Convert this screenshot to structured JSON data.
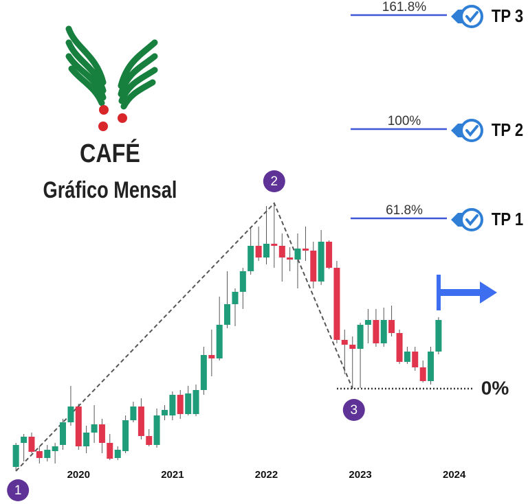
{
  "chart_data": {
    "type": "candlestick",
    "title": "CAFÉ",
    "subtitle": "Gráfico Mensal",
    "x": [
      2019.333,
      2019.417,
      2019.5,
      2019.583,
      2019.667,
      2019.75,
      2019.833,
      2019.917,
      2020.0,
      2020.083,
      2020.167,
      2020.25,
      2020.333,
      2020.417,
      2020.5,
      2020.583,
      2020.667,
      2020.75,
      2020.833,
      2020.917,
      2021.0,
      2021.083,
      2021.167,
      2021.25,
      2021.333,
      2021.417,
      2021.5,
      2021.583,
      2021.667,
      2021.75,
      2021.833,
      2021.917,
      2022.0,
      2022.083,
      2022.167,
      2022.25,
      2022.333,
      2022.417,
      2022.5,
      2022.583,
      2022.667,
      2022.75,
      2022.833,
      2022.917,
      2023.0,
      2023.083,
      2023.167,
      2023.25,
      2023.333,
      2023.417,
      2023.5,
      2023.583,
      2023.667,
      2023.75,
      2023.833
    ],
    "open": [
      68,
      85.5,
      90,
      79.5,
      74.5,
      79.5,
      84,
      100.5,
      112,
      83,
      93,
      99,
      85.5,
      74.5,
      79.5,
      102,
      112,
      90.5,
      84,
      105.5,
      105.5,
      120.5,
      106.5,
      106.5,
      124,
      149.5,
      147,
      171.5,
      186.5,
      195.5,
      210.5,
      229,
      220.5,
      230.5,
      229,
      220.5,
      219,
      227,
      225.5,
      203,
      232,
      213,
      160.5,
      157,
      154,
      171.5,
      175,
      158,
      175,
      165.5,
      144.5,
      152,
      140.5,
      130.5,
      152
    ],
    "high": [
      85.5,
      92,
      93,
      83,
      84,
      85.5,
      103,
      127,
      114,
      98,
      113,
      103,
      92,
      83,
      105.5,
      115.5,
      118,
      95.5,
      110.5,
      113,
      123,
      124,
      127,
      128,
      155.5,
      168,
      192,
      210.5,
      198,
      213,
      243,
      243,
      258,
      260,
      238,
      228,
      238,
      243,
      232,
      240.5,
      233,
      218,
      168,
      163,
      173,
      183,
      183,
      184,
      185.5,
      168,
      155.5,
      155.5,
      145.5,
      155.5,
      177
    ],
    "low": [
      65,
      72,
      78,
      70.5,
      72,
      70.5,
      80.5,
      98,
      80.5,
      78,
      85.5,
      78,
      73,
      73,
      78,
      100.5,
      88,
      83,
      82,
      102,
      102,
      103,
      105.5,
      105,
      120.5,
      134,
      145.5,
      169,
      170.5,
      183,
      208,
      218,
      215.5,
      213,
      203,
      210.5,
      198,
      218,
      198,
      200.5,
      212,
      158,
      135.5,
      125,
      125.5,
      158,
      155.5,
      155.5,
      163,
      143,
      143,
      138,
      129.5,
      128,
      150
    ],
    "close": [
      84,
      90,
      79,
      74.5,
      80.5,
      83,
      100.5,
      112,
      83,
      93,
      99,
      85.5,
      74,
      80.5,
      102,
      112,
      90.5,
      84,
      105.5,
      109.5,
      120.5,
      106.5,
      121.5,
      124,
      149.5,
      147,
      171.5,
      186.5,
      195.5,
      210.5,
      229,
      220.5,
      230.5,
      229,
      220.5,
      219,
      227,
      225.5,
      203,
      232,
      213,
      160.5,
      157,
      154,
      171.5,
      175,
      158,
      175,
      165.5,
      144.5,
      152,
      140.5,
      130.5,
      152,
      175
    ],
    "up_color": "#1f9c7a",
    "down_color": "#e0354c",
    "xlim": [
      2019.2,
      2024.5
    ],
    "xticks": [
      2020,
      2021,
      2022,
      2023,
      2024
    ],
    "ylim": [
      60,
      265
    ],
    "wave_points": [
      "1",
      "2",
      "3"
    ],
    "fib_levels": [
      {
        "value": 161.8,
        "label": "161.8%",
        "target": "TP 3"
      },
      {
        "value": 100,
        "label": "100%",
        "target": "TP 2"
      },
      {
        "value": 61.8,
        "label": "61.8%",
        "target": "TP 1"
      },
      {
        "value": 0,
        "label": "0%"
      }
    ],
    "fib_color": "#3d55d6"
  }
}
